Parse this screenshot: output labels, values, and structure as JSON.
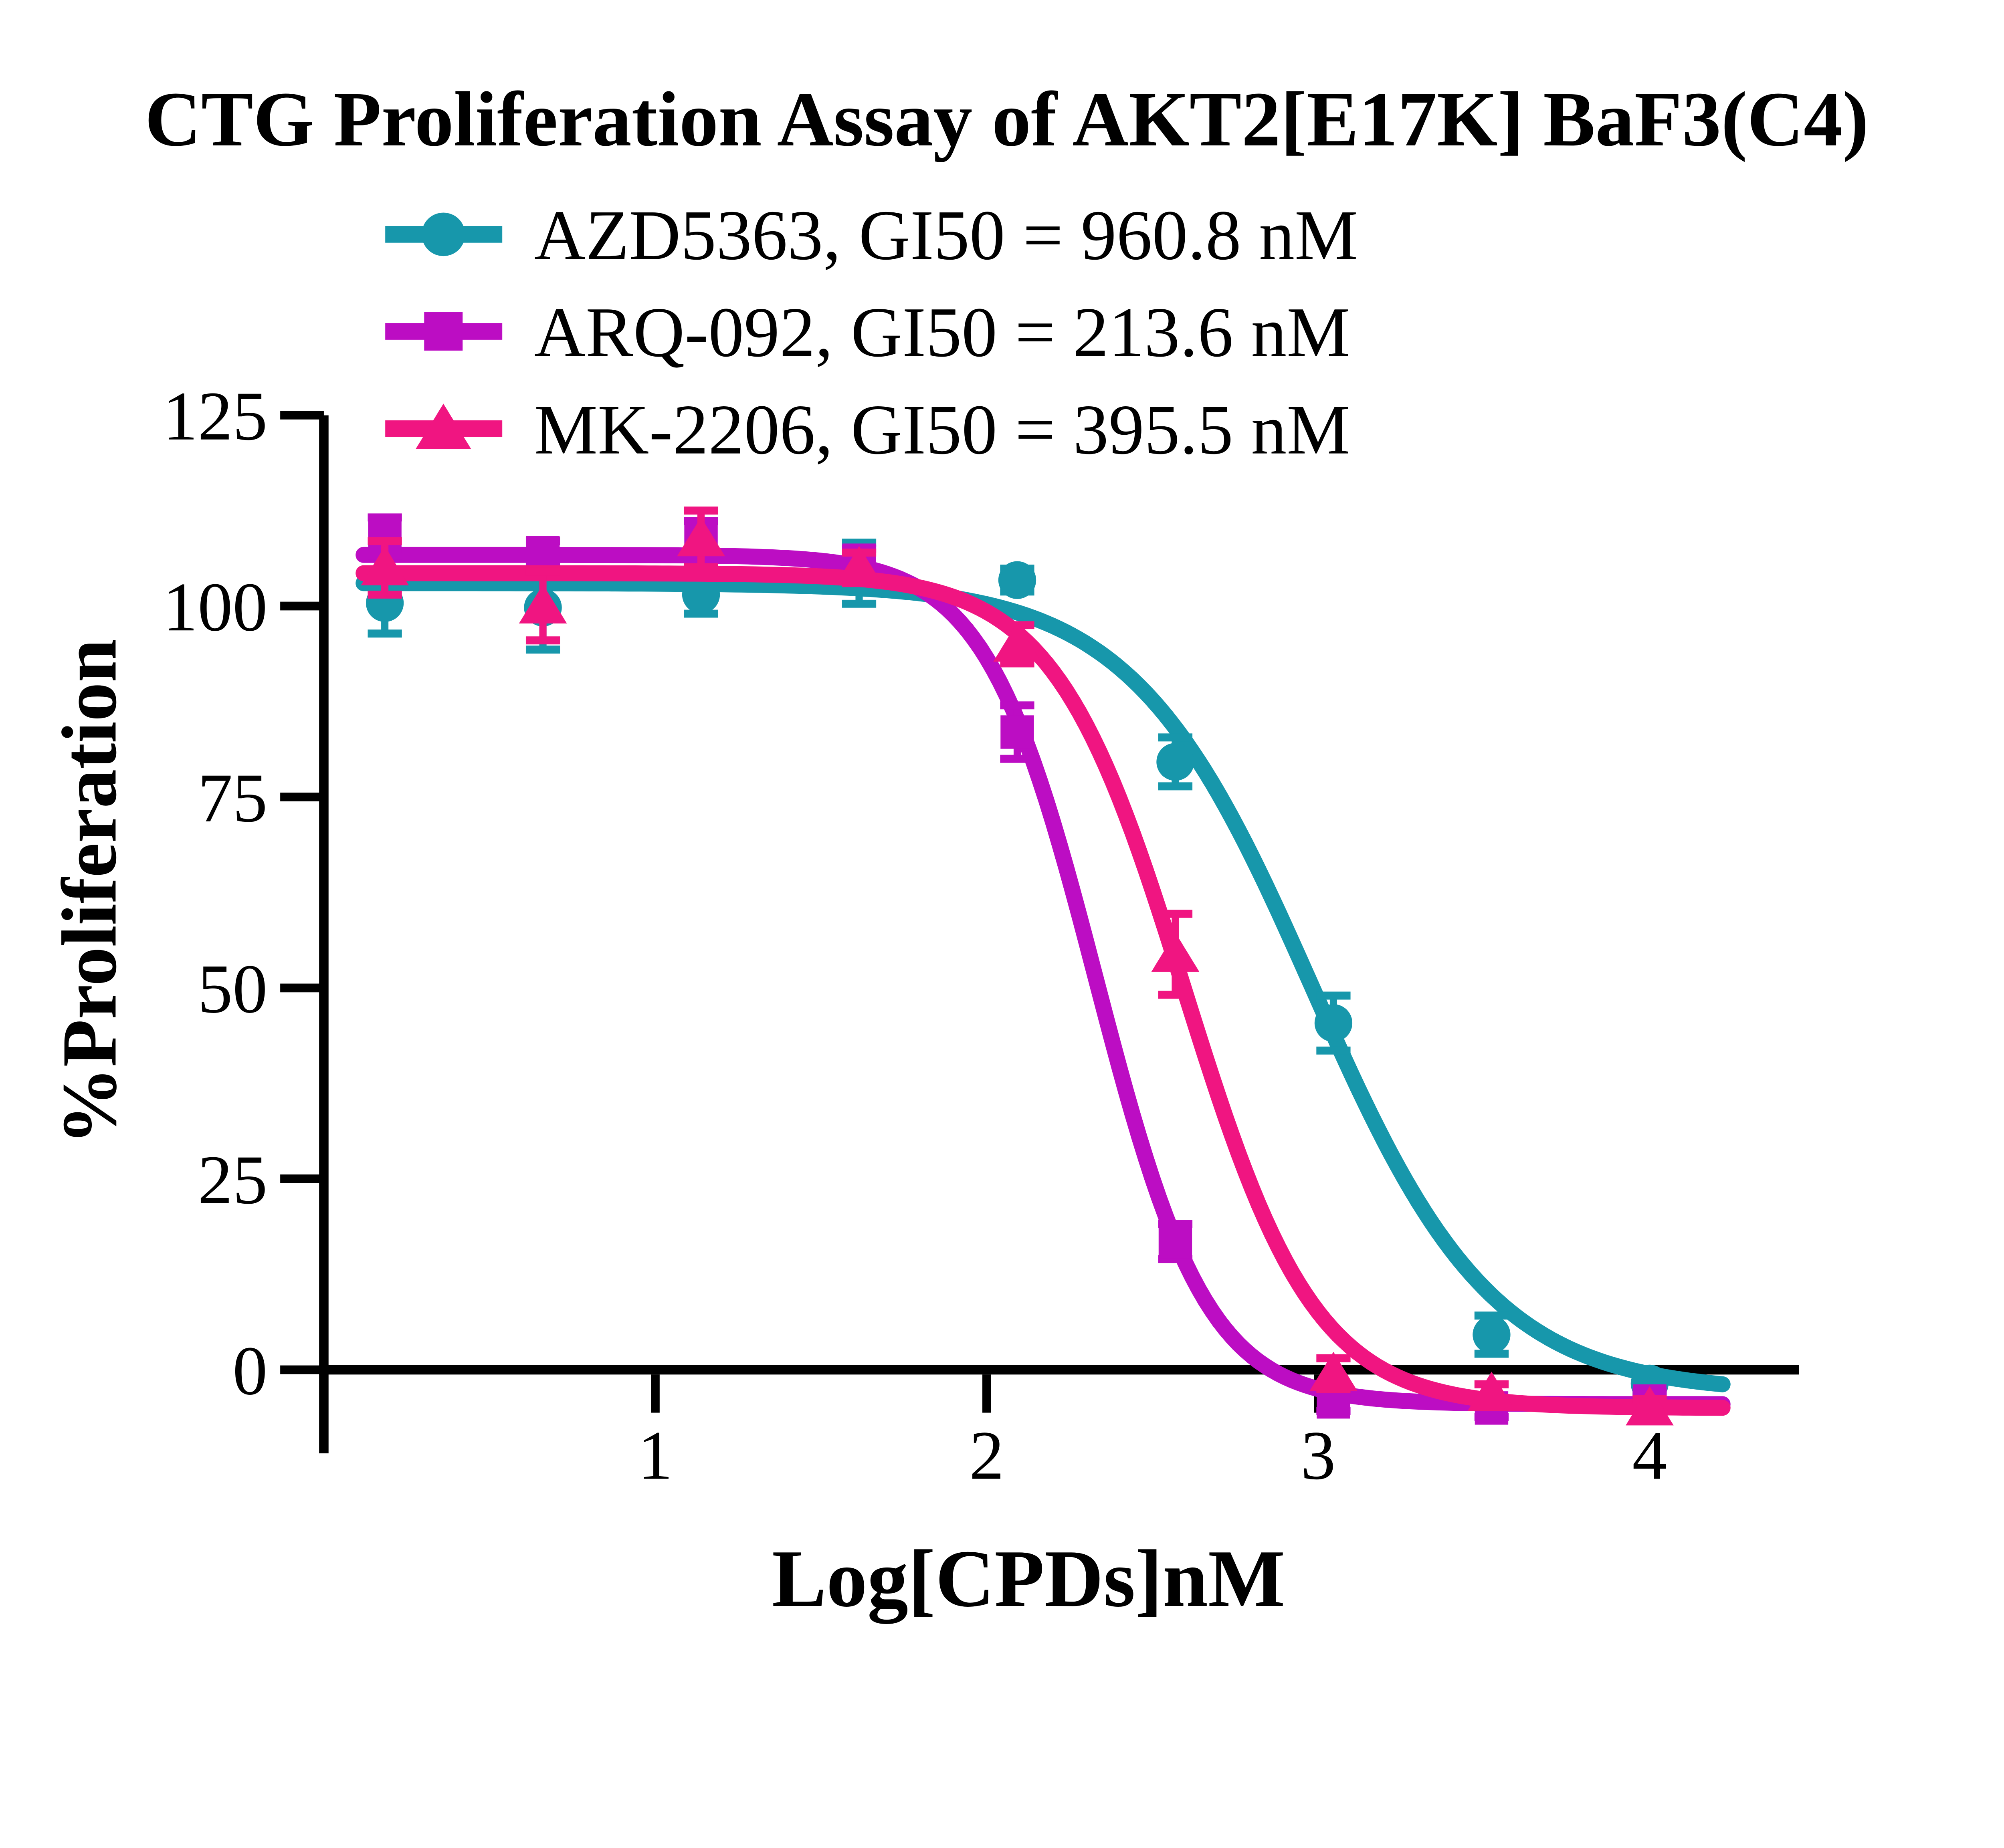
{
  "title": "CTG Proliferation Assay of AKT2[E17K] BaF3(C4)",
  "legend": [
    {
      "label": "AZD5363, GI50 = 960.8 nM",
      "name": "AZD5363",
      "gi50_nM": 960.8,
      "color": "#1797AB",
      "marker": "circle"
    },
    {
      "label": "ARQ-092, GI50 = 213.6 nM",
      "name": "ARQ-092",
      "gi50_nM": 213.6,
      "color": "#BC0DC3",
      "marker": "square"
    },
    {
      "label": "MK-2206, GI50 = 395.5 nM",
      "name": "MK-2206",
      "gi50_nM": 395.5,
      "color": "#F01581",
      "marker": "triangle"
    }
  ],
  "chart_data": {
    "type": "scatter",
    "subtype": "dose-response-curves-with-error-bars",
    "title": "CTG Proliferation Assay of AKT2[E17K] BaF3(C4)",
    "xlabel": "Log[CPDs]nM",
    "ylabel": "%Proliferation",
    "xlim": [
      0,
      4.45
    ],
    "ylim": [
      -10,
      125
    ],
    "xticks": [
      1,
      2,
      3,
      4
    ],
    "yticks": [
      0,
      25,
      50,
      75,
      100,
      125
    ],
    "grid": false,
    "legend_position": "top-left-above-plot",
    "axis_color": "#000000",
    "x": [
      0.184,
      0.661,
      1.138,
      1.615,
      2.092,
      2.569,
      3.046,
      3.523,
      4.0
    ],
    "series": [
      {
        "name": "AZD5363",
        "color": "#1797AB",
        "marker": "circle",
        "values": [
          100.4,
          99.8,
          101.5,
          104.3,
          103.4,
          79.6,
          45.4,
          4.6,
          -1.8
        ],
        "errors": [
          4.0,
          5.5,
          2.5,
          4.0,
          1.5,
          3.2,
          3.6,
          2.5,
          1.2
        ],
        "fit": {
          "top": 103.0,
          "bottom": -3.0,
          "logGI50": 2.983,
          "hill": 1.6
        }
      },
      {
        "name": "ARQ-092",
        "color": "#BC0DC3",
        "marker": "square",
        "values": [
          109.1,
          107.0,
          109.1,
          106.0,
          83.5,
          16.8,
          -4.2,
          -5.0,
          -4.1
        ],
        "errors": [
          2.5,
          1.5,
          2.0,
          1.5,
          3.5,
          2.3,
          1.2,
          1.2,
          1.2
        ],
        "fit": {
          "top": 106.7,
          "bottom": -4.5,
          "logGI50": 2.33,
          "hill": 2.6
        }
      },
      {
        "name": "MK-2206",
        "color": "#F01581",
        "marker": "triangle",
        "values": [
          105.0,
          100.0,
          108.8,
          105.0,
          95.0,
          54.4,
          -0.5,
          -3.1,
          -5.0
        ],
        "errors": [
          3.5,
          4.5,
          3.7,
          2.0,
          2.5,
          5.3,
          2.0,
          1.2,
          1.2
        ],
        "fit": {
          "top": 104.3,
          "bottom": -5.0,
          "logGI50": 2.597,
          "hill": 2.2
        }
      }
    ]
  }
}
